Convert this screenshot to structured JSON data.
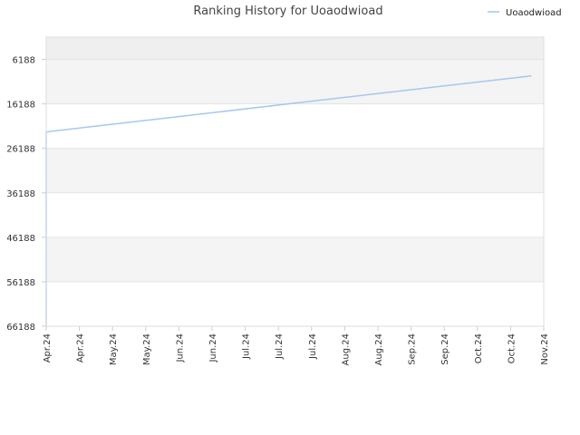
{
  "chart_data": {
    "type": "line",
    "title": "Ranking History for Uoaodwioad",
    "xlabel": "",
    "ylabel": "",
    "y_axis": {
      "inverted": true,
      "ylim": [
        1188,
        66188
      ],
      "ticks": [
        6188,
        16188,
        26188,
        36188,
        46188,
        56188,
        66188
      ],
      "tick_labels": [
        "6188",
        "16188",
        "26188",
        "36188",
        "46188",
        "56188",
        "66188"
      ]
    },
    "x_axis": {
      "tick_labels": [
        "Apr.24",
        "Apr.24",
        "May.24",
        "May.24",
        "Jun.24",
        "Jun.24",
        "Jul.24",
        "Jul.24",
        "Jul.24",
        "Aug.24",
        "Aug.24",
        "Sep.24",
        "Sep.24",
        "Oct.24",
        "Oct.24",
        "Nov.24"
      ]
    },
    "legend": {
      "position": "top-right",
      "entries": [
        "Uoaodwioad"
      ]
    },
    "grid": true,
    "series": [
      {
        "name": "Uoaodwioad",
        "color": "#a6c8ec",
        "x": [
          "Apr.24",
          "Apr.24",
          "Oct.24"
        ],
        "x_frac": [
          0.0,
          0.0,
          0.975
        ],
        "values": [
          66188,
          22488,
          9888
        ]
      }
    ]
  }
}
